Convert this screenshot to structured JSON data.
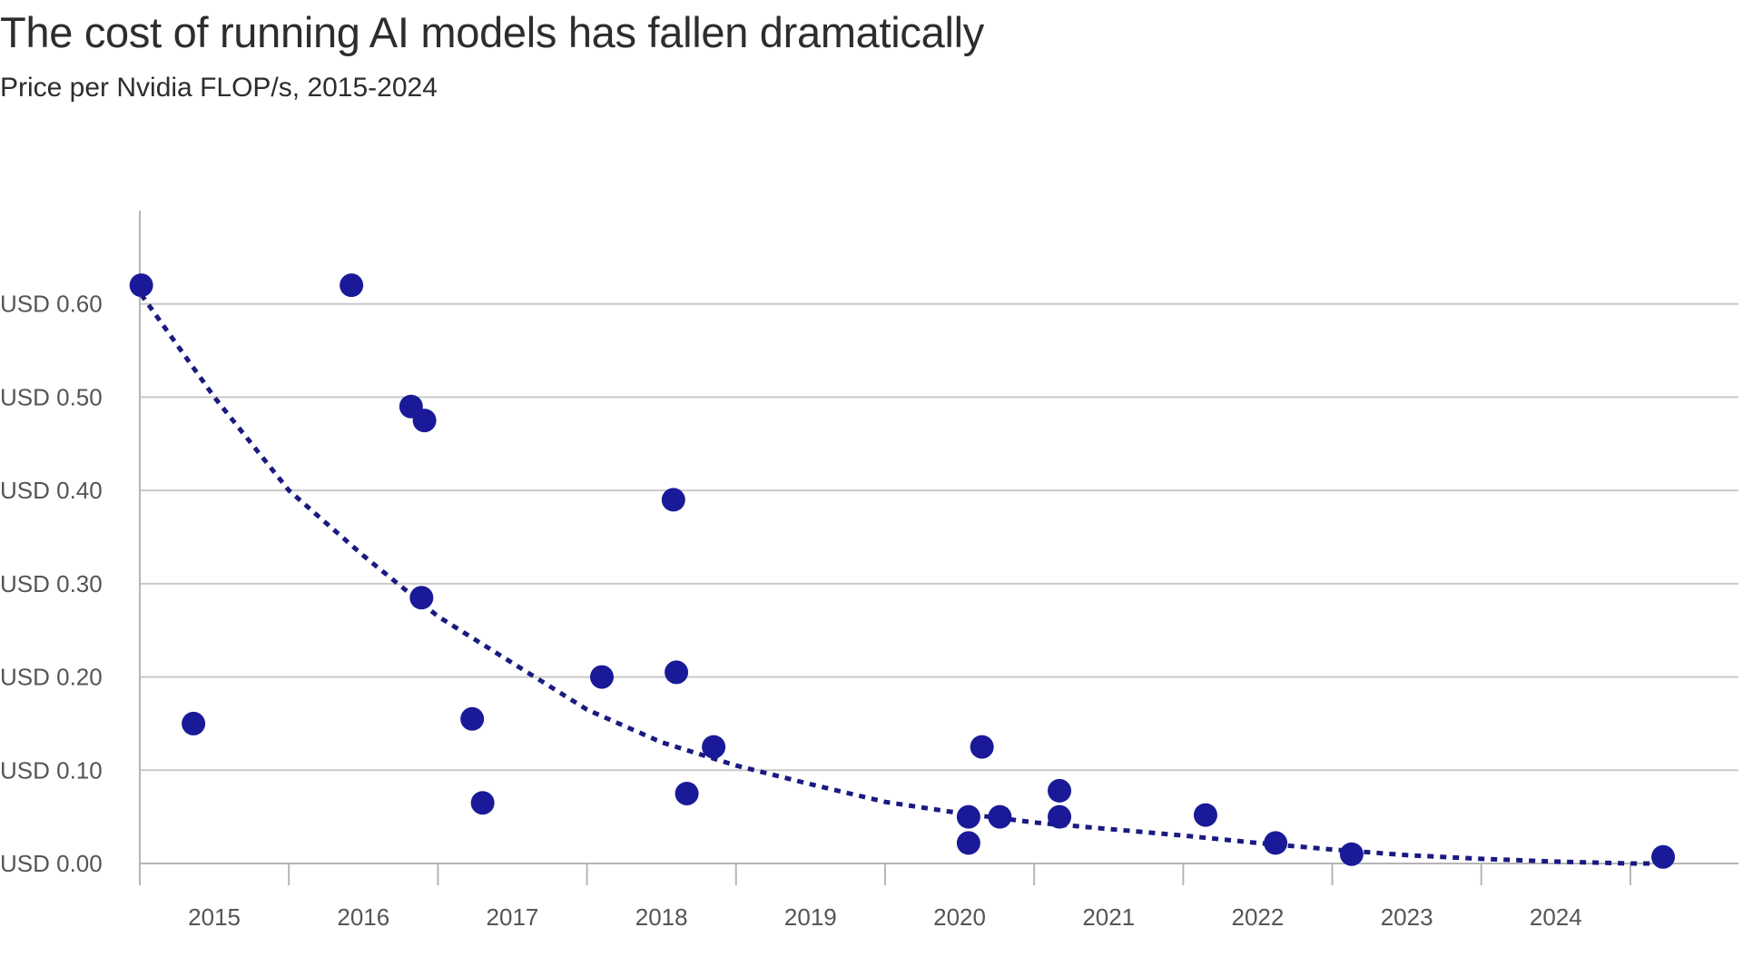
{
  "header": {
    "title": "The cost of running AI models has fallen dramatically",
    "subtitle": "Price per Nvidia FLOP/s, 2015-2024"
  },
  "colors": {
    "point": "#1a1a99",
    "trend": "#1a1a80",
    "grid": "#c9c9c9",
    "axis": "#b5b5b5",
    "text": "#555555"
  },
  "chart_data": {
    "type": "scatter",
    "title": "The cost of running AI models has fallen dramatically",
    "subtitle": "Price per Nvidia FLOP/s, 2015-2024",
    "xlabel": "",
    "ylabel": "",
    "xlim": [
      2014.5,
      2025.0
    ],
    "ylim": [
      0.0,
      0.7
    ],
    "grid": "horizontal",
    "legend": "none",
    "x_tick_labels": [
      "2015",
      "2016",
      "2017",
      "2018",
      "2019",
      "2020",
      "2021",
      "2022",
      "2023",
      "2024"
    ],
    "y_ticks": [
      0.0,
      0.1,
      0.2,
      0.3,
      0.4,
      0.5,
      0.6
    ],
    "y_tick_labels": [
      "USD 0.00",
      "USD 0.10",
      "USD 0.20",
      "USD 0.30",
      "USD 0.40",
      "USD 0.50",
      "USD 0.60"
    ],
    "series": [
      {
        "values": [
          {
            "x": 2014.51,
            "y": 0.62
          },
          {
            "x": 2014.86,
            "y": 0.15
          },
          {
            "x": 2015.92,
            "y": 0.62
          },
          {
            "x": 2016.32,
            "y": 0.49
          },
          {
            "x": 2016.41,
            "y": 0.475
          },
          {
            "x": 2016.39,
            "y": 0.285
          },
          {
            "x": 2016.73,
            "y": 0.155
          },
          {
            "x": 2016.8,
            "y": 0.065
          },
          {
            "x": 2017.6,
            "y": 0.2
          },
          {
            "x": 2018.08,
            "y": 0.39
          },
          {
            "x": 2018.1,
            "y": 0.205
          },
          {
            "x": 2018.17,
            "y": 0.075
          },
          {
            "x": 2018.35,
            "y": 0.125
          },
          {
            "x": 2020.06,
            "y": 0.05
          },
          {
            "x": 2020.06,
            "y": 0.022
          },
          {
            "x": 2020.15,
            "y": 0.125
          },
          {
            "x": 2020.27,
            "y": 0.05
          },
          {
            "x": 2020.67,
            "y": 0.078
          },
          {
            "x": 2020.67,
            "y": 0.05
          },
          {
            "x": 2021.65,
            "y": 0.052
          },
          {
            "x": 2022.12,
            "y": 0.022
          },
          {
            "x": 2022.63,
            "y": 0.01
          },
          {
            "x": 2024.72,
            "y": 0.007
          }
        ]
      }
    ],
    "trend": {
      "style": "dotted",
      "points": [
        {
          "x": 2014.51,
          "y": 0.61
        },
        {
          "x": 2015.0,
          "y": 0.5
        },
        {
          "x": 2015.5,
          "y": 0.4
        },
        {
          "x": 2016.0,
          "y": 0.33
        },
        {
          "x": 2016.5,
          "y": 0.265
        },
        {
          "x": 2017.0,
          "y": 0.215
        },
        {
          "x": 2017.5,
          "y": 0.165
        },
        {
          "x": 2018.0,
          "y": 0.13
        },
        {
          "x": 2018.5,
          "y": 0.105
        },
        {
          "x": 2019.0,
          "y": 0.085
        },
        {
          "x": 2019.5,
          "y": 0.066
        },
        {
          "x": 2020.0,
          "y": 0.054
        },
        {
          "x": 2020.5,
          "y": 0.044
        },
        {
          "x": 2021.0,
          "y": 0.037
        },
        {
          "x": 2021.5,
          "y": 0.03
        },
        {
          "x": 2022.0,
          "y": 0.022
        },
        {
          "x": 2022.5,
          "y": 0.015
        },
        {
          "x": 2023.0,
          "y": 0.009
        },
        {
          "x": 2023.5,
          "y": 0.005
        },
        {
          "x": 2024.0,
          "y": 0.002
        },
        {
          "x": 2024.5,
          "y": 0.0
        },
        {
          "x": 2024.72,
          "y": 0.0
        }
      ]
    }
  }
}
